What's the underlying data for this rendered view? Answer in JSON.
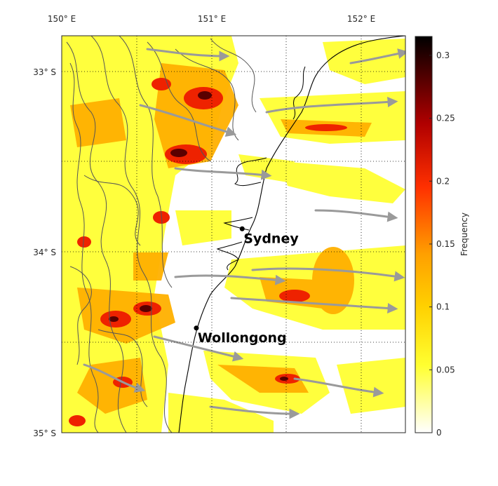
{
  "map": {
    "lon_ticks": [
      "150° E",
      "151° E",
      "152° E"
    ],
    "lat_ticks": [
      "33° S",
      "34° S",
      "35° S"
    ],
    "cities": [
      {
        "name": "Sydney",
        "lon": 151.21,
        "lat": -33.87
      },
      {
        "name": "Wollongong",
        "lon": 150.89,
        "lat": -34.42
      }
    ],
    "extent": {
      "lon_min": 149.95,
      "lon_max": 152.35,
      "lat_min": -35.0,
      "lat_max": -32.8
    },
    "colors": {
      "frequency_ramp": [
        "#ffffff",
        "#ffff00",
        "#ffa500",
        "#ff0000",
        "#000000"
      ],
      "streamline": "#9a9a9a",
      "topography": "#555555",
      "coast": "#000000"
    }
  },
  "colorbar": {
    "label": "Frequency",
    "tick_labels": [
      "0",
      "0.05",
      "0.1",
      "0.15",
      "0.2",
      "0.25",
      "0.3"
    ],
    "range": [
      0,
      0.315
    ]
  }
}
